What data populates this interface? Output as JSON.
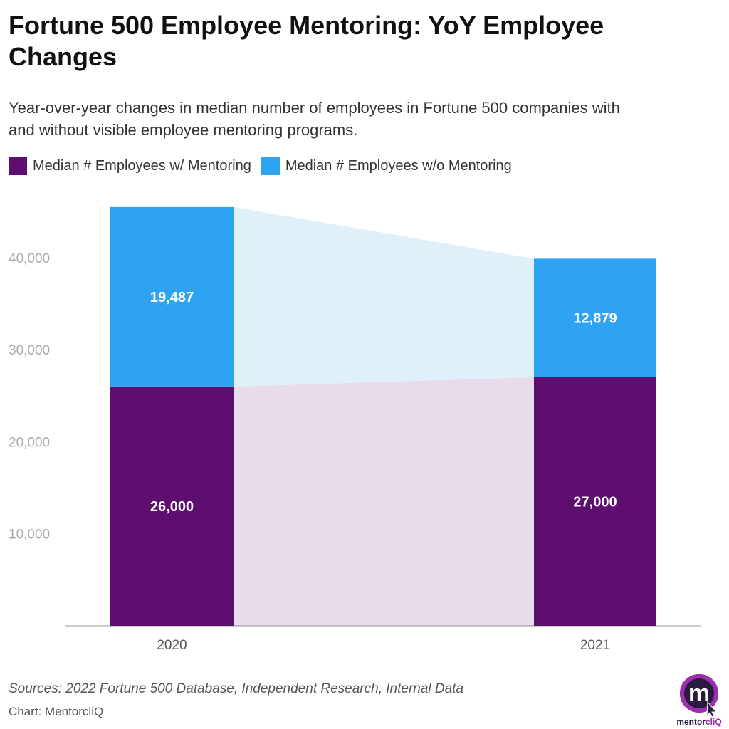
{
  "title": "Fortune 500 Employee Mentoring: YoY Employee Changes",
  "subtitle": "Year-over-year changes in median number of employees in Fortune 500 companies with and without visible employee mentoring programs.",
  "footer": {
    "sources": "Sources: 2022 Fortune 500 Database, Independent Research, Internal Data",
    "credit": "Chart: MentorcliQ",
    "logo_text": "mentorcliQ"
  },
  "chart_data": {
    "type": "bar",
    "stacked": true,
    "categories": [
      "2020",
      "2021"
    ],
    "series": [
      {
        "name": "Median # Employees w/ Mentoring",
        "values": [
          26000,
          27000
        ],
        "labels": [
          "26,000",
          "27,000"
        ],
        "color": "#5e0e6e",
        "band_color": "#e8dbea"
      },
      {
        "name": "Median # Employees w/o Mentoring",
        "values": [
          19487,
          12879
        ],
        "labels": [
          "19,487",
          "12,879"
        ],
        "color": "#2ea3f2",
        "band_color": "#e0f0fb"
      }
    ],
    "yticks": [
      10000,
      20000,
      30000,
      40000
    ],
    "ytick_labels": [
      "10,000",
      "20,000",
      "30,000",
      "40,000"
    ],
    "ylim": [
      0,
      45487
    ],
    "legend": "top-left",
    "grid": false
  }
}
